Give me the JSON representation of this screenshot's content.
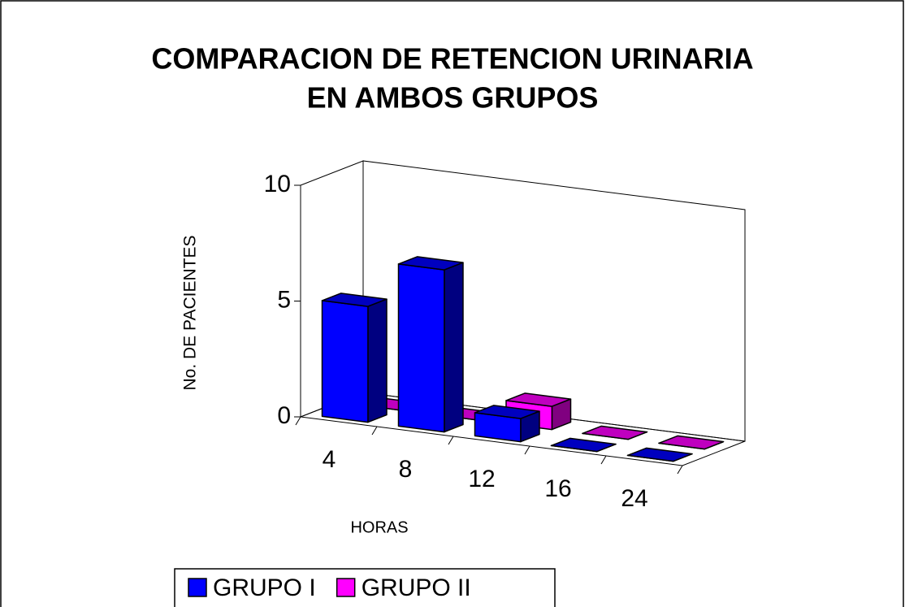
{
  "chart_data": {
    "type": "bar3d",
    "title": [
      "COMPARACION DE RETENCION URINARIA",
      "EN AMBOS GRUPOS"
    ],
    "x_label": "HORAS",
    "y_label": "No. DE PACIENTES",
    "categories": [
      "4",
      "8",
      "12",
      "16",
      "24"
    ],
    "series": [
      {
        "name": "GRUPO I",
        "color": "#0000ff",
        "values": [
          5,
          7,
          1,
          0,
          0
        ]
      },
      {
        "name": "GRUPO II",
        "color": "#ff00ff",
        "values": [
          0,
          0,
          1,
          0,
          0
        ]
      }
    ],
    "ylim": [
      0,
      10
    ],
    "yticks": [
      0,
      5,
      10
    ],
    "legend": "bottom"
  }
}
